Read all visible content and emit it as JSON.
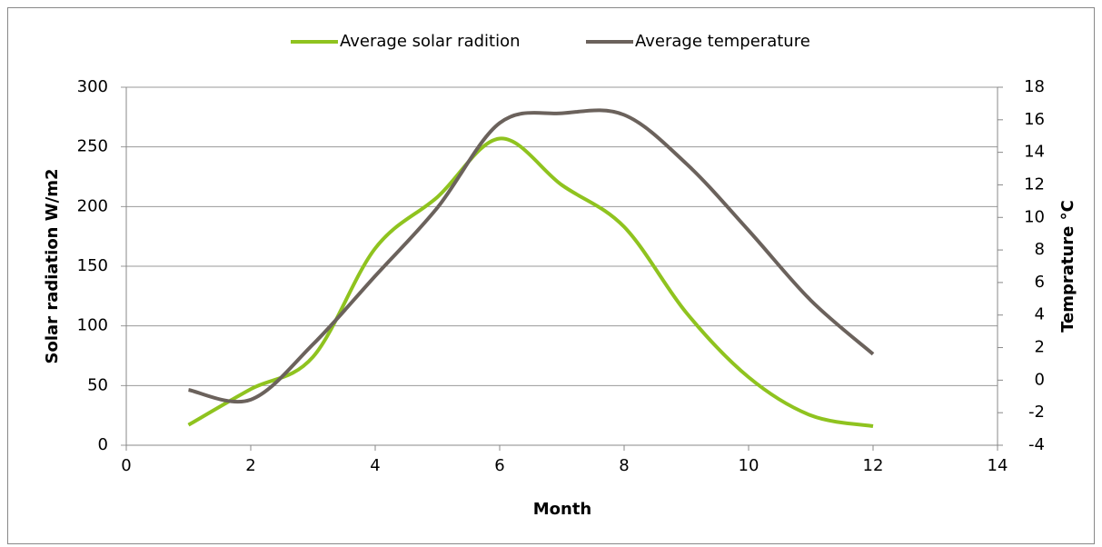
{
  "chart_data": {
    "type": "line",
    "xlabel": "Month",
    "ylabel": "Solar radiation W/m2",
    "y2label": "Temprature °C",
    "x": [
      1,
      2,
      3,
      4,
      5,
      6,
      7,
      8,
      9,
      10,
      11,
      12
    ],
    "series": [
      {
        "name": "Average solar radition",
        "color": "#8fc31f",
        "values": [
          17,
          47,
          74,
          165,
          208,
          257,
          218,
          183,
          111,
          57,
          25,
          16
        ]
      },
      {
        "name": "Average temperature",
        "color": "#6b625c",
        "axis": "y2",
        "values": [
          -0.6,
          -1.2,
          2.2,
          6.4,
          10.6,
          15.8,
          16.4,
          16.3,
          13.3,
          9.2,
          4.9,
          1.6
        ]
      }
    ],
    "xlim": [
      0,
      14
    ],
    "xticks": [
      0,
      2,
      4,
      6,
      8,
      10,
      12,
      14
    ],
    "ylim": [
      0,
      300
    ],
    "yticks": [
      0,
      50,
      100,
      150,
      200,
      250,
      300
    ],
    "y2lim": [
      -4,
      18
    ],
    "y2ticks": [
      -4,
      -2,
      0,
      2,
      4,
      6,
      8,
      10,
      12,
      14,
      16,
      18
    ],
    "grid": true,
    "legend": "top",
    "smooth": true
  }
}
